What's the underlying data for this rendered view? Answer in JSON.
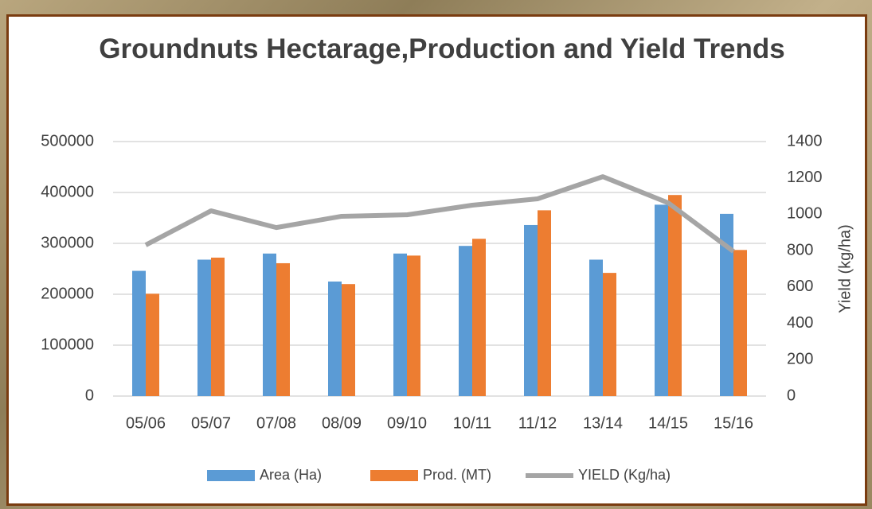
{
  "chart_data": {
    "type": "combo",
    "title": "Groundnuts Hectarage,Production and Yield Trends",
    "y2label": "Yield (kg/ha)",
    "categories": [
      "05/06",
      "05/07",
      "07/08",
      "08/09",
      "09/10",
      "10/11",
      "11/12",
      "13/14",
      "14/15",
      "15/16"
    ],
    "series": [
      {
        "name": "Area (Ha)",
        "type": "bar",
        "color": "#5b9bd5",
        "values": [
          246000,
          268000,
          280000,
          225000,
          280000,
          295000,
          336000,
          268000,
          376000,
          358000
        ]
      },
      {
        "name": "Prod. (MT)",
        "type": "bar",
        "color": "#ed7d31",
        "values": [
          201000,
          272000,
          261000,
          220000,
          276000,
          309000,
          365000,
          242000,
          395000,
          287000
        ]
      },
      {
        "name": "YIELD (Kg/ha)",
        "type": "line",
        "axis": "y2",
        "color": "#a5a5a5",
        "values": [
          831,
          1019,
          927,
          989,
          997,
          1050,
          1085,
          1207,
          1063,
          796
        ]
      }
    ],
    "ylim": [
      0,
      500000
    ],
    "yticks": [
      0,
      100000,
      200000,
      300000,
      400000,
      500000
    ],
    "y2lim": [
      0,
      1400
    ],
    "y2ticks": [
      0,
      200,
      400,
      600,
      800,
      1000,
      1200,
      1400
    ],
    "grid": true
  }
}
